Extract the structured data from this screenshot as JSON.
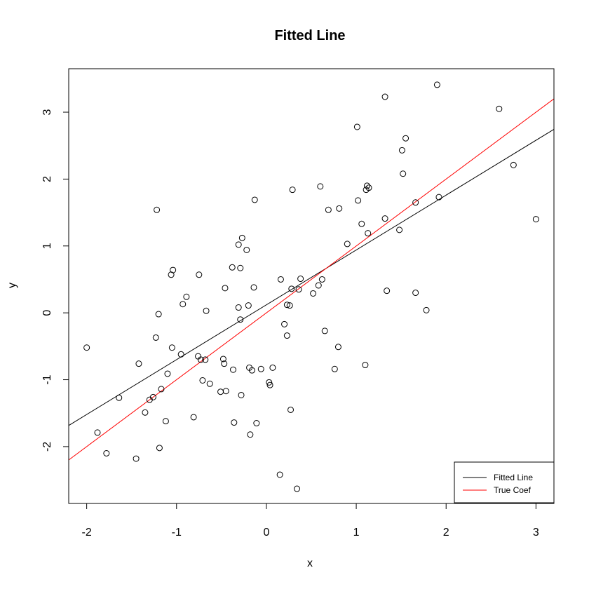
{
  "chart_data": {
    "type": "scatter",
    "title": "Fitted Line",
    "xlabel": "x",
    "ylabel": "y",
    "xlim": [
      -2.2,
      3.2
    ],
    "ylim": [
      -2.85,
      3.65
    ],
    "xticks": [
      -2,
      -1,
      0,
      1,
      2,
      3
    ],
    "xtick_labels": [
      "-2",
      "-1",
      "0",
      "1",
      "2",
      "3"
    ],
    "yticks": [
      -2,
      -1,
      0,
      1,
      2,
      3
    ],
    "ytick_labels": [
      "-2",
      "-1",
      "0",
      "1",
      "2",
      "3"
    ],
    "grid": false,
    "legend_position": "bottom-right",
    "points_series": {
      "marker": "open-circle",
      "color": "#000000",
      "x": [
        -2.0,
        -1.88,
        -1.78,
        -1.64,
        -1.45,
        -1.42,
        -1.35,
        -1.3,
        -1.26,
        -1.23,
        -1.22,
        -1.2,
        -1.19,
        -1.17,
        -1.12,
        -1.1,
        -1.06,
        -1.05,
        -1.04,
        -0.95,
        -0.93,
        -0.89,
        -0.81,
        -0.76,
        -0.75,
        -0.73,
        -0.71,
        -0.68,
        -0.67,
        -0.63,
        -0.51,
        -0.48,
        -0.47,
        -0.46,
        -0.45,
        -0.38,
        -0.37,
        -0.36,
        -0.31,
        -0.31,
        -0.29,
        -0.29,
        -0.28,
        -0.27,
        -0.22,
        -0.2,
        -0.19,
        -0.18,
        -0.16,
        -0.14,
        -0.13,
        -0.11,
        -0.06,
        0.03,
        0.04,
        0.07,
        0.15,
        0.16,
        0.2,
        0.23,
        0.23,
        0.26,
        0.27,
        0.28,
        0.29,
        0.34,
        0.36,
        0.38,
        0.52,
        0.58,
        0.6,
        0.62,
        0.65,
        0.69,
        0.76,
        0.8,
        0.81,
        0.9,
        1.01,
        1.02,
        1.06,
        1.1,
        1.11,
        1.12,
        1.13,
        1.14,
        1.32,
        1.32,
        1.34,
        1.48,
        1.51,
        1.52,
        1.55,
        1.66,
        1.66,
        1.78,
        1.9,
        1.92,
        2.59,
        2.75,
        3.0
      ],
      "y": [
        -0.52,
        -1.79,
        -2.1,
        -1.27,
        -2.18,
        -0.76,
        -1.49,
        -1.3,
        -1.26,
        -0.37,
        1.54,
        -0.02,
        -2.02,
        -1.14,
        -1.62,
        -0.91,
        0.57,
        -0.52,
        0.64,
        -0.62,
        0.13,
        0.24,
        -1.56,
        -0.65,
        0.57,
        -0.7,
        -1.01,
        -0.7,
        0.03,
        -1.06,
        -1.18,
        -0.69,
        -0.76,
        0.37,
        -1.17,
        0.68,
        -0.85,
        -1.64,
        1.02,
        0.08,
        0.67,
        -0.1,
        -1.23,
        1.12,
        0.94,
        0.11,
        -0.82,
        -1.82,
        -0.86,
        0.38,
        1.69,
        -1.65,
        -0.84,
        -1.04,
        -1.08,
        -0.82,
        -2.42,
        0.5,
        -0.17,
        0.12,
        -0.34,
        0.11,
        -1.45,
        0.36,
        1.84,
        -2.63,
        0.35,
        0.51,
        0.29,
        0.41,
        1.89,
        0.5,
        -0.27,
        1.54,
        -0.84,
        -0.51,
        1.56,
        1.03,
        2.78,
        1.68,
        1.33,
        -0.78,
        1.84,
        1.9,
        1.19,
        1.87,
        1.41,
        3.23,
        0.33,
        1.24,
        2.43,
        2.08,
        2.61,
        0.3,
        1.65,
        0.04,
        3.41,
        1.73,
        3.05,
        2.21,
        1.4
      ]
    },
    "lines": [
      {
        "name": "Fitted Line",
        "color": "#000000",
        "intercept": 0.12,
        "slope": 0.82
      },
      {
        "name": "True Coef",
        "color": "#ff0000",
        "intercept": 0.0,
        "slope": 1.0
      }
    ]
  }
}
